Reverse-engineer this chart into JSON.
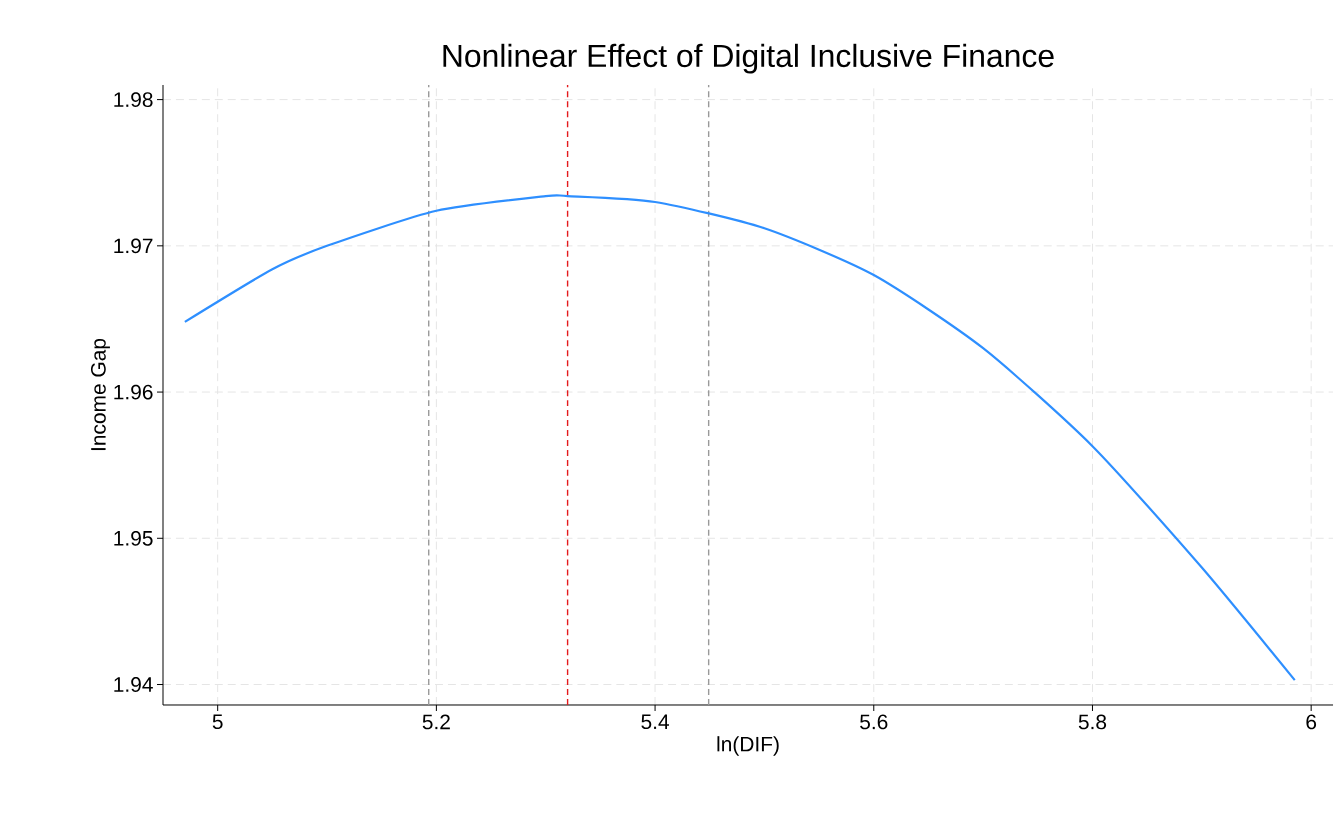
{
  "chart_data": {
    "type": "line",
    "title": "Nonlinear Effect of Digital Inclusive Finance",
    "xlabel": "ln(DIF)",
    "ylabel": "Income Gap",
    "x": [
      4.97,
      5.05,
      5.1,
      5.2,
      5.3,
      5.32,
      5.4,
      5.5,
      5.6,
      5.7,
      5.8,
      5.9,
      5.985
    ],
    "series": [
      {
        "color": "#2e8fff",
        "values": [
          1.9648,
          1.9684,
          1.97,
          1.9724,
          1.9734,
          1.9734,
          1.973,
          1.9712,
          1.968,
          1.963,
          1.9563,
          1.948,
          1.9403
        ]
      }
    ],
    "xlim": [
      4.95,
      6.02
    ],
    "ylim": [
      1.9386,
      1.981
    ],
    "xticks": [
      5,
      5.2,
      5.4,
      5.6,
      5.8,
      6
    ],
    "yticks": [
      1.94,
      1.95,
      1.96,
      1.97,
      1.98
    ],
    "ref_lines": [
      {
        "axis": "x",
        "value": 5.193,
        "color": "#999999",
        "line_style": "dashed"
      },
      {
        "axis": "x",
        "value": 5.32,
        "color": "#e41a1c",
        "line_style": "dashed"
      },
      {
        "axis": "x",
        "value": 5.449,
        "color": "#999999",
        "line_style": "dashed"
      }
    ],
    "grid": true,
    "marker": "none",
    "line_style": "solid"
  }
}
